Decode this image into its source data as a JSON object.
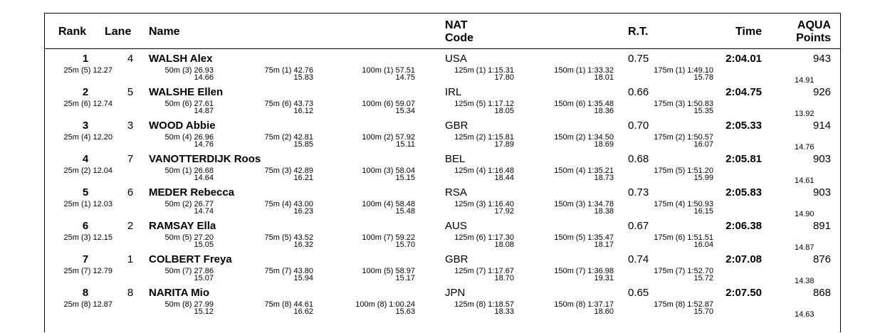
{
  "headers": {
    "rank": "Rank",
    "lane": "Lane",
    "name": "Name",
    "nat_line1": "NAT",
    "nat_line2": "Code",
    "rt": "R.T.",
    "time": "Time",
    "points_line1": "AQUA",
    "points_line2": "Points"
  },
  "results": [
    {
      "rank": "1",
      "lane": "4",
      "name": "WALSH Alex",
      "nat": "USA",
      "rt": "0.75",
      "time": "2:04.01",
      "points": "943",
      "s25": "25m (5) 12.27",
      "s50": "50m (3) 26.93",
      "d50": "14.66",
      "s75": "75m (1) 42.76",
      "d75": "15.83",
      "s100": "100m (1) 57.51",
      "d100": "14.75",
      "s125": "125m (1) 1:15.31",
      "d125": "17.80",
      "s150": "150m (1) 1:33.32",
      "d150": "18.01",
      "s175": "175m (1) 1:49.10",
      "d175": "15.78",
      "dlast": "14.91"
    },
    {
      "rank": "2",
      "lane": "5",
      "name": "WALSHE Ellen",
      "nat": "IRL",
      "rt": "0.66",
      "time": "2:04.75",
      "points": "926",
      "s25": "25m (6) 12.74",
      "s50": "50m (6) 27.61",
      "d50": "14.87",
      "s75": "75m (6) 43.73",
      "d75": "16.12",
      "s100": "100m (6) 59.07",
      "d100": "15.34",
      "s125": "125m (5) 1:17.12",
      "d125": "18.05",
      "s150": "150m (6) 1:35.48",
      "d150": "18.36",
      "s175": "175m (3) 1:50.83",
      "d175": "15.35",
      "dlast": "13.92"
    },
    {
      "rank": "3",
      "lane": "3",
      "name": "WOOD Abbie",
      "nat": "GBR",
      "rt": "0.70",
      "time": "2:05.33",
      "points": "914",
      "s25": "25m (4) 12.20",
      "s50": "50m (4) 26.96",
      "d50": "14.76",
      "s75": "75m (2) 42.81",
      "d75": "15.85",
      "s100": "100m (2) 57.92",
      "d100": "15.11",
      "s125": "125m (2) 1:15.81",
      "d125": "17.89",
      "s150": "150m (2) 1:34.50",
      "d150": "18.69",
      "s175": "175m (2) 1:50.57",
      "d175": "16.07",
      "dlast": "14.76"
    },
    {
      "rank": "4",
      "lane": "7",
      "name": "VANOTTERDIJK Roos",
      "nat": "BEL",
      "rt": "0.68",
      "time": "2:05.81",
      "points": "903",
      "s25": "25m (2) 12.04",
      "s50": "50m (1) 26.68",
      "d50": "14.64",
      "s75": "75m (3) 42.89",
      "d75": "16.21",
      "s100": "100m (3) 58.04",
      "d100": "15.15",
      "s125": "125m (4) 1:16.48",
      "d125": "18.44",
      "s150": "150m (4) 1:35.21",
      "d150": "18.73",
      "s175": "175m (5) 1:51.20",
      "d175": "15.99",
      "dlast": "14.61"
    },
    {
      "rank": "5",
      "lane": "6",
      "name": "MEDER Rebecca",
      "nat": "RSA",
      "rt": "0.73",
      "time": "2:05.83",
      "points": "903",
      "s25": "25m (1) 12.03",
      "s50": "50m (2) 26.77",
      "d50": "14.74",
      "s75": "75m (4) 43.00",
      "d75": "16.23",
      "s100": "100m (4) 58.48",
      "d100": "15.48",
      "s125": "125m (3) 1:16.40",
      "d125": "17.92",
      "s150": "150m (3) 1:34.78",
      "d150": "18.38",
      "s175": "175m (4) 1:50.93",
      "d175": "16.15",
      "dlast": "14.90"
    },
    {
      "rank": "6",
      "lane": "2",
      "name": "RAMSAY Ella",
      "nat": "AUS",
      "rt": "0.67",
      "time": "2:06.38",
      "points": "891",
      "s25": "25m (3) 12.15",
      "s50": "50m (5) 27.20",
      "d50": "15.05",
      "s75": "75m (5) 43.52",
      "d75": "16.32",
      "s100": "100m (7) 59.22",
      "d100": "15.70",
      "s125": "125m (6) 1:17.30",
      "d125": "18.08",
      "s150": "150m (5) 1:35.47",
      "d150": "18.17",
      "s175": "175m (6) 1:51.51",
      "d175": "16.04",
      "dlast": "14.87"
    },
    {
      "rank": "7",
      "lane": "1",
      "name": "COLBERT Freya",
      "nat": "GBR",
      "rt": "0.74",
      "time": "2:07.08",
      "points": "876",
      "s25": "25m (7) 12.79",
      "s50": "50m (7) 27.86",
      "d50": "15.07",
      "s75": "75m (7) 43.80",
      "d75": "15.94",
      "s100": "100m (5) 58.97",
      "d100": "15.17",
      "s125": "125m (7) 1:17.67",
      "d125": "18.70",
      "s150": "150m (7) 1:36.98",
      "d150": "19.31",
      "s175": "175m (7) 1:52.70",
      "d175": "15.72",
      "dlast": "14.38"
    },
    {
      "rank": "8",
      "lane": "8",
      "name": "NARITA Mio",
      "nat": "JPN",
      "rt": "0.65",
      "time": "2:07.50",
      "points": "868",
      "s25": "25m (8) 12.87",
      "s50": "50m (8) 27.99",
      "d50": "15.12",
      "s75": "75m (8) 44.61",
      "d75": "16.62",
      "s100": "100m (8) 1:00.24",
      "d100": "15.63",
      "s125": "125m (8) 1:18.57",
      "d125": "18.33",
      "s150": "150m (8) 1:37.17",
      "d150": "18.60",
      "s175": "175m (8) 1:52.87",
      "d175": "15.70",
      "dlast": "14.63"
    }
  ]
}
